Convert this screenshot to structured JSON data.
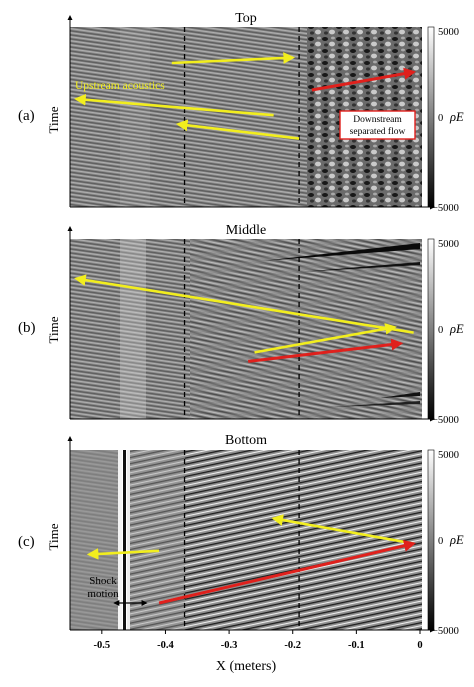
{
  "figure": {
    "xlabel": "X (meters)",
    "x_ticks": [
      "-0.5",
      "-0.4",
      "-0.3",
      "-0.2",
      "-0.1",
      "0"
    ],
    "x_tick_values": [
      -0.5,
      -0.4,
      -0.3,
      -0.2,
      -0.1,
      0
    ],
    "xlim": [
      -0.55,
      0.0
    ],
    "colorbar": {
      "max_label": "5000",
      "zero_label": "0",
      "min_label": "−5000",
      "quantity": "ρE"
    },
    "colors": {
      "yellow_arrow": "#f2ee1e",
      "red_arrow": "#e0201c",
      "dashed_line": "#000000"
    }
  },
  "chart_data": [
    {
      "type": "heatmap",
      "panel_label": "(a)",
      "title": "Top",
      "ylabel": "Time",
      "xlim": [
        -0.55,
        0.0
      ],
      "colorbar_range": [
        -5000,
        5000
      ],
      "dashed_lines_x": [
        -0.37,
        -0.19
      ],
      "annotations": [
        {
          "kind": "text",
          "text": "Upstream acoustics",
          "color": "yellow"
        },
        {
          "kind": "boxed_text",
          "text": "Downstream separated flow",
          "lines": [
            "Downstream",
            "separated flow"
          ]
        }
      ],
      "arrows": [
        {
          "color": "yellow",
          "from_x": -0.39,
          "to_x": -0.2,
          "direction": "downstream"
        },
        {
          "color": "yellow",
          "from_x": -0.23,
          "to_x": -0.54,
          "direction": "upstream"
        },
        {
          "color": "yellow",
          "from_x": -0.19,
          "to_x": -0.38,
          "direction": "upstream"
        },
        {
          "color": "red",
          "from_x": -0.17,
          "to_x": -0.01,
          "direction": "downstream"
        }
      ]
    },
    {
      "type": "heatmap",
      "panel_label": "(b)",
      "title": "Middle",
      "ylabel": "Time",
      "xlim": [
        -0.55,
        0.0
      ],
      "colorbar_range": [
        -5000,
        5000
      ],
      "dashed_lines_x": [
        -0.37,
        -0.19
      ],
      "arrows": [
        {
          "color": "yellow",
          "from_x": -0.01,
          "to_x": -0.54,
          "direction": "upstream"
        },
        {
          "color": "yellow",
          "from_x": -0.26,
          "to_x": -0.04,
          "direction": "downstream"
        },
        {
          "color": "red",
          "from_x": -0.27,
          "to_x": -0.03,
          "direction": "downstream"
        }
      ]
    },
    {
      "type": "heatmap",
      "panel_label": "(c)",
      "title": "Bottom",
      "ylabel": "Time",
      "xlim": [
        -0.55,
        0.0
      ],
      "colorbar_range": [
        -5000,
        5000
      ],
      "dashed_lines_x": [
        -0.37,
        -0.19
      ],
      "annotations": [
        {
          "kind": "text",
          "text": "Shock motion",
          "lines": [
            "Shock",
            "motion"
          ]
        }
      ],
      "arrows": [
        {
          "color": "yellow",
          "from_x": -0.41,
          "to_x": -0.52,
          "direction": "upstream"
        },
        {
          "color": "yellow",
          "from_x": -0.01,
          "to_x": -0.23,
          "direction": "upstream"
        },
        {
          "color": "red",
          "from_x": -0.41,
          "to_x": -0.01,
          "direction": "downstream"
        },
        {
          "color": "black",
          "from_x": -0.43,
          "to_x": -0.48,
          "direction": "both"
        }
      ]
    }
  ]
}
